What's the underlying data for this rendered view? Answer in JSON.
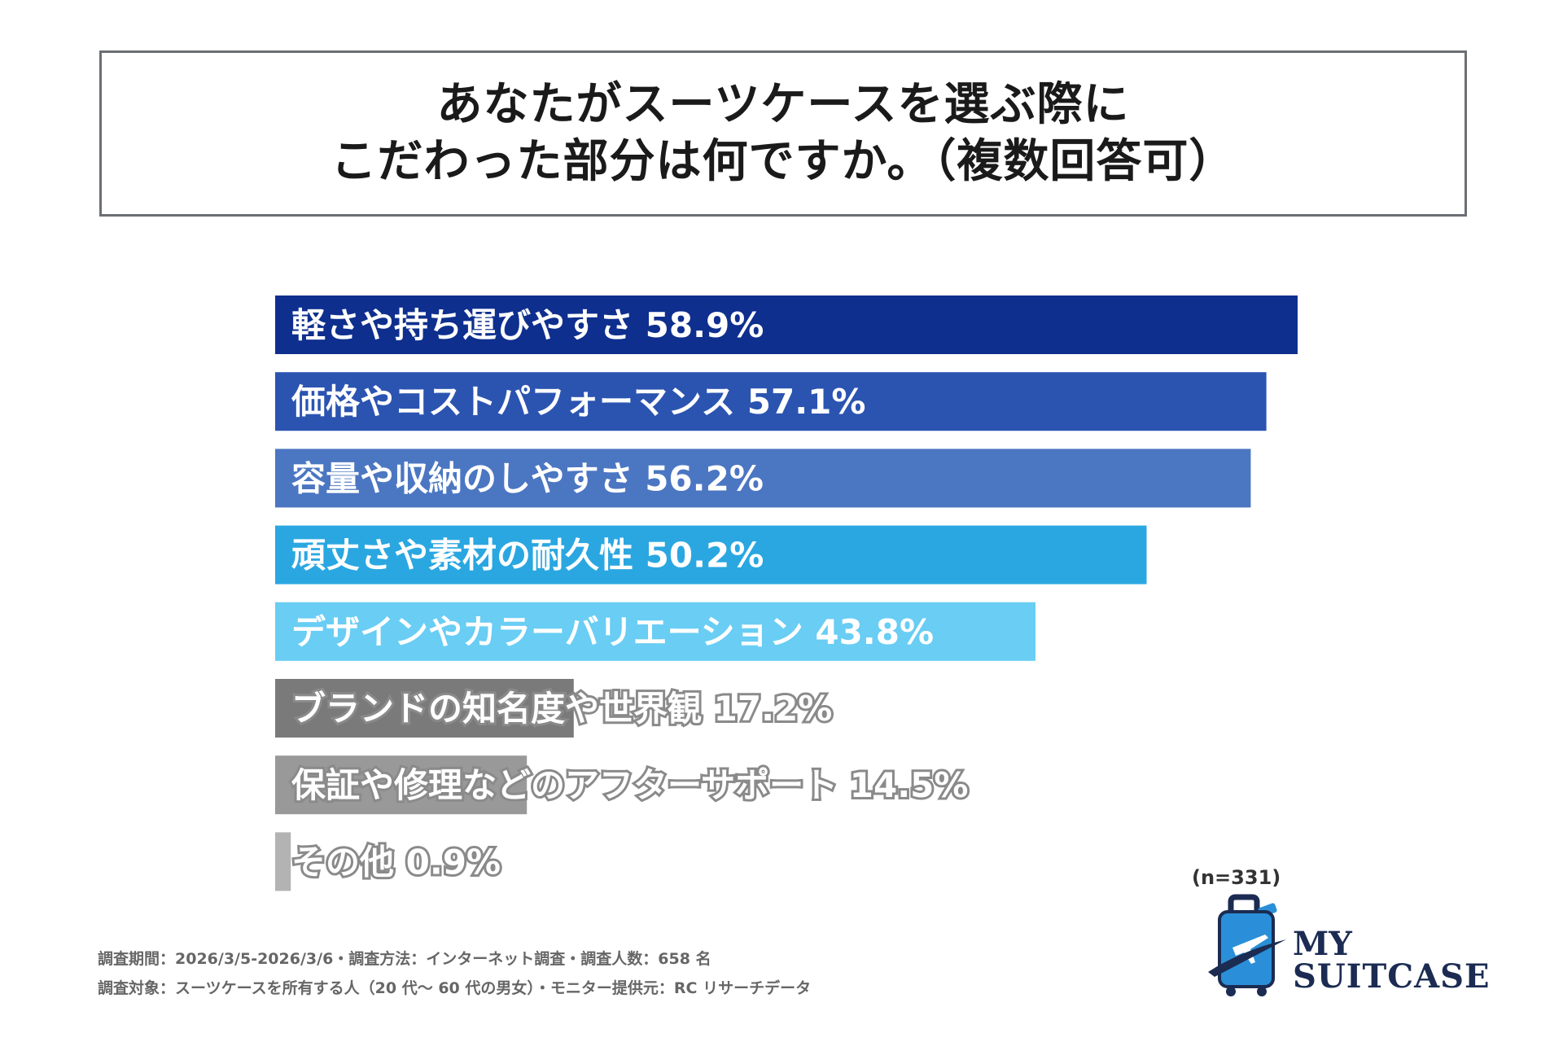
{
  "title": {
    "line1": "あなたがスーツケースを選ぶ際に",
    "line2": "こだわった部分は何ですか。（複数回答可）"
  },
  "chart_data": {
    "type": "bar",
    "orientation": "horizontal",
    "categories": [
      "軽さや持ち運びやすさ",
      "価格やコストパフォーマンス",
      "容量や収納のしやすさ",
      "頑丈さや素材の耐久性",
      "デザインやカラーバリエーション",
      "ブランドの知名度や世界観",
      "保証や修理などのアフターサポート",
      "その他"
    ],
    "values": [
      58.9,
      57.1,
      56.2,
      50.2,
      43.8,
      17.2,
      14.5,
      0.9
    ],
    "value_labels": [
      "58.9%",
      "57.1%",
      "56.2%",
      "50.2%",
      "43.8%",
      "17.2%",
      "14.5%",
      "0.9%"
    ],
    "colors": [
      "#0e2f8e",
      "#2b54b1",
      "#4b76c2",
      "#2aa7e1",
      "#69cdf4",
      "#7a7a7a",
      "#999999",
      "#b3b3b3"
    ],
    "unit": "%",
    "xlim": [
      0,
      60
    ]
  },
  "sample_size": "(n=331)",
  "footnotes": {
    "line1": "調査期間：2026/3/5-2026/3/6・調査方法：インターネット調査・調査人数：658 名",
    "line2": "調査対象：スーツケースを所有する人（20 代～ 60 代の男女）・モニター提供元：RC リサーチデータ"
  },
  "logo": {
    "line1": "MY",
    "line2": "SUITCASE",
    "icon": "suitcase-airplane-icon",
    "primary_color": "#2a8fd8",
    "dark_color": "#1b2b52"
  }
}
